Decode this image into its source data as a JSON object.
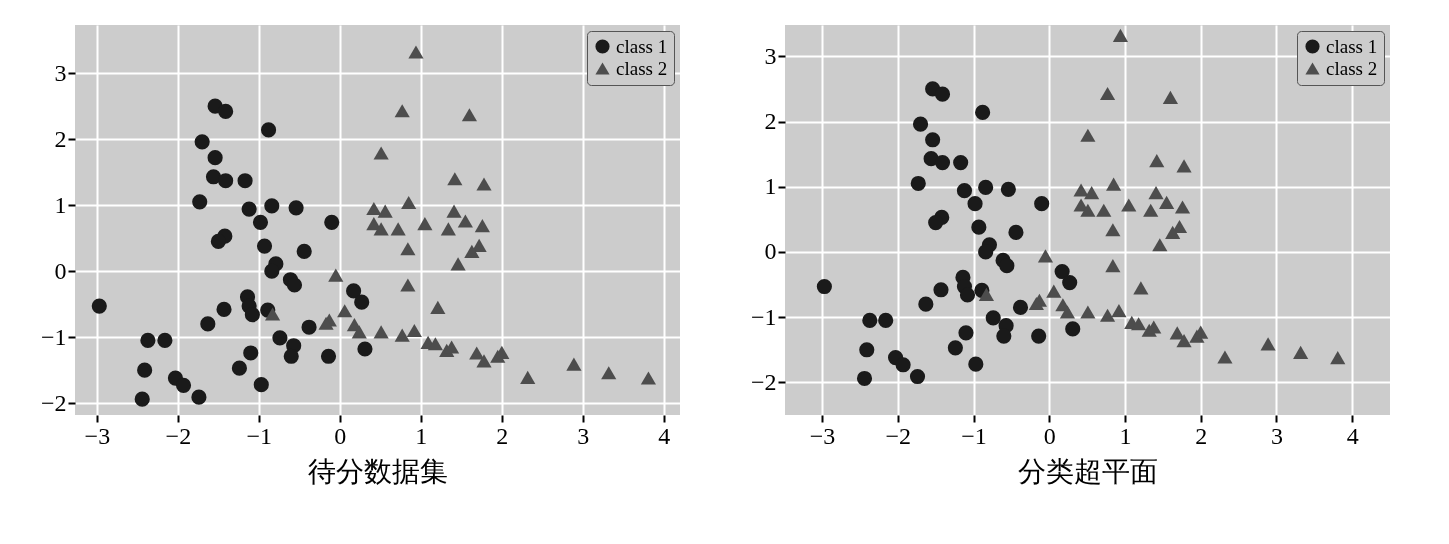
{
  "chart_data": [
    {
      "type": "scatter",
      "xlabel": "待分数据集",
      "xlim": [
        -3.27,
        4.2
      ],
      "ylim": [
        -2.18,
        3.73
      ],
      "xticks": [
        -3,
        -2,
        -1,
        0,
        1,
        2,
        3,
        4
      ],
      "yticks": [
        -2,
        -1,
        0,
        1,
        2,
        3
      ],
      "grid": true,
      "legend": "top right",
      "series": [
        {
          "name": "class 1",
          "color": "#1a1a1a",
          "marker": "circle",
          "x": [
            -2.97,
            -1.54,
            -1.41,
            -0.88,
            -1.7,
            -1.54,
            -1.56,
            -1.41,
            -1.17,
            -1.73,
            -1.12,
            -0.84,
            -0.54,
            -0.1,
            -0.98,
            -1.42,
            -1.5,
            -0.93,
            -0.44,
            -0.79,
            -0.84,
            -0.61,
            -0.56,
            0.17,
            0.27,
            -1.14,
            -1.12,
            -1.08,
            -0.89,
            -1.43,
            -1.63,
            -0.38,
            -2.37,
            -2.16,
            -0.74,
            -0.57,
            -0.6,
            -0.14,
            0.31,
            -1.1,
            -1.24,
            -0.97,
            -2.41,
            -2.03,
            -1.93,
            -1.74,
            -2.44
          ],
          "values": [
            -0.53,
            2.5,
            2.42,
            2.14,
            1.96,
            1.72,
            1.43,
            1.37,
            1.37,
            1.05,
            0.94,
            0.99,
            0.96,
            0.74,
            0.74,
            0.53,
            0.45,
            0.38,
            0.3,
            0.11,
            0,
            -0.13,
            -0.21,
            -0.3,
            -0.47,
            -0.39,
            -0.53,
            -0.66,
            -0.59,
            -0.58,
            -0.8,
            -0.85,
            -1.05,
            -1.05,
            -1.01,
            -1.13,
            -1.29,
            -1.29,
            -1.18,
            -1.24,
            -1.47,
            -1.72,
            -1.5,
            -1.62,
            -1.73,
            -1.91,
            -1.94
          ]
        },
        {
          "name": "class 2",
          "color": "#4d4d4d",
          "marker": "triangle",
          "x": [
            0.94,
            0.77,
            1.6,
            0.51,
            1.42,
            1.78,
            0.85,
            0.42,
            0.56,
            1.41,
            1.05,
            1.55,
            1.76,
            0.42,
            0.51,
            0.72,
            1.34,
            0.84,
            1.72,
            1.63,
            1.46,
            -0.05,
            0.84,
            1.21,
            -0.83,
            0.06,
            -0.13,
            -0.17,
            0.18,
            0.24,
            0.51,
            0.77,
            0.92,
            1.09,
            1.18,
            1.32,
            1.38,
            1.69,
            1.78,
            1.95,
            2.0,
            2.32,
            2.89,
            3.32,
            3.81
          ],
          "values": [
            3.32,
            2.43,
            2.37,
            1.79,
            1.4,
            1.32,
            1.04,
            0.95,
            0.91,
            0.91,
            0.72,
            0.76,
            0.69,
            0.72,
            0.64,
            0.64,
            0.64,
            0.34,
            0.39,
            0.3,
            0.11,
            -0.06,
            -0.21,
            -0.55,
            -0.65,
            -0.6,
            -0.74,
            -0.79,
            -0.81,
            -0.92,
            -0.92,
            -0.97,
            -0.9,
            -1.08,
            -1.1,
            -1.2,
            -1.15,
            -1.24,
            -1.36,
            -1.29,
            -1.23,
            -1.61,
            -1.41,
            -1.54,
            -1.62
          ]
        }
      ]
    },
    {
      "type": "scatter",
      "xlabel": "分类超平面",
      "xlim": [
        -3.49,
        4.5
      ],
      "ylim": [
        -2.5,
        3.48
      ],
      "xticks": [
        -3,
        -2,
        -1,
        0,
        1,
        2,
        3,
        4
      ],
      "yticks": [
        -2,
        -1,
        0,
        1,
        2,
        3
      ],
      "grid": true,
      "legend": "top right",
      "series": [
        {
          "name": "class 1",
          "color": "#1a1a1a",
          "marker": "circle",
          "x": [
            -2.97,
            -1.54,
            -1.41,
            -0.88,
            -1.7,
            -1.54,
            -1.56,
            -1.41,
            -1.17,
            -1.73,
            -1.12,
            -0.84,
            -0.54,
            -0.1,
            -0.98,
            -1.42,
            -1.5,
            -0.93,
            -0.44,
            -0.79,
            -0.84,
            -0.61,
            -0.56,
            0.17,
            0.27,
            -1.14,
            -1.12,
            -1.08,
            -0.89,
            -1.43,
            -1.63,
            -0.38,
            -2.37,
            -2.16,
            -0.74,
            -0.57,
            -0.6,
            -0.14,
            0.31,
            -1.1,
            -1.24,
            -0.97,
            -2.41,
            -2.03,
            -1.93,
            -1.74,
            -2.44
          ],
          "values": [
            -0.53,
            2.5,
            2.42,
            2.14,
            1.96,
            1.72,
            1.43,
            1.37,
            1.37,
            1.05,
            0.94,
            0.99,
            0.96,
            0.74,
            0.74,
            0.53,
            0.45,
            0.38,
            0.3,
            0.11,
            0,
            -0.13,
            -0.21,
            -0.3,
            -0.47,
            -0.39,
            -0.53,
            -0.66,
            -0.59,
            -0.58,
            -0.8,
            -0.85,
            -1.05,
            -1.05,
            -1.01,
            -1.13,
            -1.29,
            -1.29,
            -1.18,
            -1.24,
            -1.47,
            -1.72,
            -1.5,
            -1.62,
            -1.73,
            -1.91,
            -1.94
          ]
        },
        {
          "name": "class 2",
          "color": "#4d4d4d",
          "marker": "triangle",
          "x": [
            0.94,
            0.77,
            1.6,
            0.51,
            1.42,
            1.78,
            0.85,
            0.42,
            0.56,
            1.41,
            1.05,
            1.55,
            1.76,
            0.42,
            0.51,
            0.72,
            1.34,
            0.84,
            1.72,
            1.63,
            1.46,
            -0.05,
            0.84,
            1.21,
            -0.83,
            0.06,
            -0.13,
            -0.17,
            0.18,
            0.24,
            0.51,
            0.77,
            0.92,
            1.09,
            1.18,
            1.32,
            1.38,
            1.69,
            1.78,
            1.95,
            2.0,
            2.32,
            2.89,
            3.32,
            3.81
          ],
          "values": [
            3.32,
            2.43,
            2.37,
            1.79,
            1.4,
            1.32,
            1.04,
            0.95,
            0.91,
            0.91,
            0.72,
            0.76,
            0.69,
            0.72,
            0.64,
            0.64,
            0.64,
            0.34,
            0.39,
            0.3,
            0.11,
            -0.06,
            -0.21,
            -0.55,
            -0.65,
            -0.6,
            -0.74,
            -0.79,
            -0.81,
            -0.92,
            -0.92,
            -0.97,
            -0.9,
            -1.08,
            -1.1,
            -1.2,
            -1.15,
            -1.24,
            -1.36,
            -1.29,
            -1.23,
            -1.61,
            -1.41,
            -1.54,
            -1.62
          ]
        }
      ]
    }
  ]
}
